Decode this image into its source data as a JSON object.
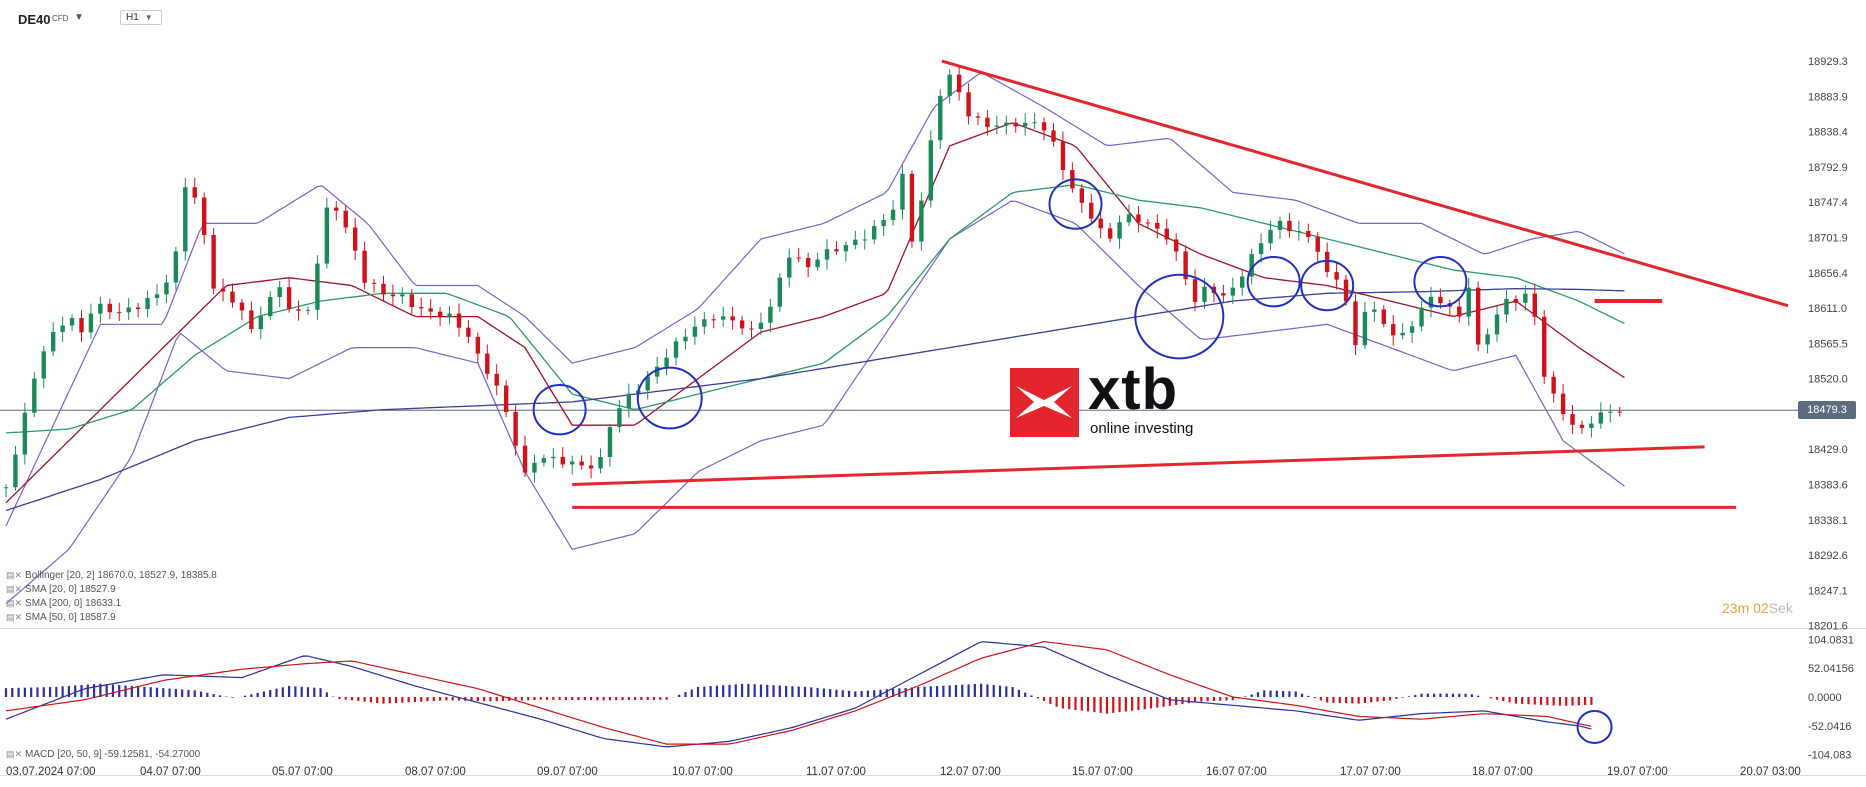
{
  "header": {
    "symbol": "DE40",
    "symbol_type": "CFD",
    "timeframe": "H1"
  },
  "logo": {
    "word": "xtb",
    "tagline": "online investing"
  },
  "countdown": {
    "minutes": "23",
    "m_unit": "m",
    "seconds": "02",
    "s_unit": "Sek"
  },
  "current_price": "18479.3",
  "indicators": [
    {
      "label": "Bollinger  [20, 2] 18670.0,  18527.9,  18385.8"
    },
    {
      "label": "SMA  [20, 0]  18527.9"
    },
    {
      "label": "SMA  [200, 0]  18633.1"
    },
    {
      "label": "SMA  [50, 0]  18587.9"
    }
  ],
  "macd_label": "MACD  [20, 50, 9]  -59.12581,   -54.27000",
  "colors": {
    "bull": "#1a8a5a",
    "bear": "#d0121b",
    "bollinger": "#7a62c8",
    "sma20": "#a0112a",
    "sma50": "#2a9a6a",
    "sma200": "#3a3f99",
    "trend": "#e3262e",
    "circle": "#2230c0",
    "macd_pos": "#2b2fa0",
    "macd_neg": "#d0121b"
  },
  "chart_data": {
    "type": "candlestick",
    "timeframe": "H1",
    "y_ticks": [
      18929.3,
      18883.9,
      18838.4,
      18792.9,
      18747.4,
      18701.9,
      18656.4,
      18611.0,
      18565.5,
      18520.0,
      18429.0,
      18383.6,
      18338.1,
      18292.6,
      18247.1,
      18201.6
    ],
    "ylim": [
      18196,
      18950
    ],
    "x_ticks": [
      "03.07.2024  07:00",
      "04.07  07:00",
      "05.07  07:00",
      "08.07  07:00",
      "09.07  07:00",
      "10.07  07:00",
      "11.07  07:00",
      "12.07  07:00",
      "15.07  07:00",
      "16.07  07:00",
      "17.07  07:00",
      "18.07  07:00",
      "19.07  07:00",
      "20.07  03:00"
    ],
    "path_points": [
      [
        0,
        18380
      ],
      [
        10,
        18455
      ],
      [
        20,
        18540
      ],
      [
        32,
        18585
      ],
      [
        40,
        18600
      ],
      [
        48,
        18580
      ],
      [
        56,
        18615
      ],
      [
        72,
        18605
      ],
      [
        86,
        18615
      ],
      [
        100,
        18635
      ],
      [
        108,
        18680
      ],
      [
        114,
        18770
      ],
      [
        118,
        18760
      ],
      [
        122,
        18745
      ],
      [
        132,
        18640
      ],
      [
        140,
        18625
      ],
      [
        150,
        18610
      ],
      [
        156,
        18580
      ],
      [
        166,
        18620
      ],
      [
        176,
        18640
      ],
      [
        182,
        18600
      ],
      [
        192,
        18610
      ],
      [
        200,
        18690
      ],
      [
        206,
        18760
      ],
      [
        214,
        18720
      ],
      [
        220,
        18700
      ],
      [
        226,
        18650
      ],
      [
        240,
        18630
      ],
      [
        252,
        18625
      ],
      [
        262,
        18610
      ],
      [
        270,
        18605
      ],
      [
        282,
        18600
      ],
      [
        294,
        18575
      ],
      [
        302,
        18540
      ],
      [
        310,
        18520
      ],
      [
        320,
        18465
      ],
      [
        330,
        18395
      ],
      [
        338,
        18420
      ],
      [
        350,
        18415
      ],
      [
        362,
        18410
      ],
      [
        370,
        18405
      ],
      [
        378,
        18415
      ],
      [
        384,
        18460
      ],
      [
        392,
        18490
      ],
      [
        400,
        18505
      ],
      [
        408,
        18520
      ],
      [
        416,
        18540
      ],
      [
        424,
        18560
      ],
      [
        436,
        18585
      ],
      [
        450,
        18600
      ],
      [
        462,
        18595
      ],
      [
        474,
        18580
      ],
      [
        482,
        18600
      ],
      [
        490,
        18625
      ],
      [
        494,
        18670
      ],
      [
        500,
        18685
      ],
      [
        508,
        18660
      ],
      [
        518,
        18680
      ],
      [
        532,
        18690
      ],
      [
        544,
        18700
      ],
      [
        556,
        18720
      ],
      [
        564,
        18740
      ],
      [
        570,
        18780
      ],
      [
        576,
        18700
      ],
      [
        584,
        18765
      ],
      [
        590,
        18855
      ],
      [
        596,
        18905
      ],
      [
        602,
        18910
      ],
      [
        606,
        18890
      ],
      [
        612,
        18860
      ],
      [
        620,
        18850
      ],
      [
        630,
        18845
      ],
      [
        640,
        18850
      ],
      [
        650,
        18845
      ],
      [
        656,
        18855
      ],
      [
        662,
        18835
      ],
      [
        668,
        18815
      ],
      [
        676,
        18770
      ],
      [
        684,
        18745
      ],
      [
        692,
        18725
      ],
      [
        700,
        18695
      ],
      [
        710,
        18730
      ],
      [
        720,
        18725
      ],
      [
        730,
        18715
      ],
      [
        740,
        18700
      ],
      [
        748,
        18660
      ],
      [
        756,
        18620
      ],
      [
        764,
        18640
      ],
      [
        774,
        18625
      ],
      [
        782,
        18640
      ],
      [
        790,
        18670
      ],
      [
        796,
        18690
      ],
      [
        802,
        18710
      ],
      [
        810,
        18720
      ],
      [
        820,
        18710
      ],
      [
        830,
        18700
      ],
      [
        836,
        18680
      ],
      [
        842,
        18640
      ],
      [
        846,
        18650
      ],
      [
        852,
        18620
      ],
      [
        858,
        18560
      ],
      [
        862,
        18600
      ],
      [
        866,
        18620
      ],
      [
        872,
        18600
      ],
      [
        880,
        18580
      ],
      [
        888,
        18575
      ],
      [
        896,
        18595
      ],
      [
        902,
        18620
      ],
      [
        910,
        18625
      ],
      [
        918,
        18610
      ],
      [
        924,
        18600
      ],
      [
        930,
        18640
      ],
      [
        936,
        18560
      ],
      [
        942,
        18580
      ],
      [
        950,
        18610
      ],
      [
        956,
        18625
      ],
      [
        962,
        18620
      ],
      [
        968,
        18630
      ],
      [
        972,
        18600
      ],
      [
        976,
        18540
      ],
      [
        980,
        18510
      ],
      [
        986,
        18490
      ],
      [
        994,
        18465
      ],
      [
        1000,
        18450
      ],
      [
        1010,
        18470
      ],
      [
        1020,
        18478
      ],
      [
        1030,
        18480
      ]
    ],
    "bollinger": {
      "upper": [
        [
          0,
          18330
        ],
        [
          60,
          18590
        ],
        [
          100,
          18590
        ],
        [
          125,
          18720
        ],
        [
          160,
          18720
        ],
        [
          200,
          18770
        ],
        [
          230,
          18720
        ],
        [
          260,
          18640
        ],
        [
          300,
          18640
        ],
        [
          330,
          18600
        ],
        [
          360,
          18540
        ],
        [
          400,
          18560
        ],
        [
          440,
          18610
        ],
        [
          480,
          18700
        ],
        [
          520,
          18720
        ],
        [
          560,
          18760
        ],
        [
          590,
          18870
        ],
        [
          620,
          18915
        ],
        [
          660,
          18870
        ],
        [
          700,
          18820
        ],
        [
          740,
          18830
        ],
        [
          780,
          18760
        ],
        [
          820,
          18750
        ],
        [
          860,
          18720
        ],
        [
          900,
          18720
        ],
        [
          940,
          18680
        ],
        [
          970,
          18700
        ],
        [
          1000,
          18710
        ],
        [
          1030,
          18680
        ]
      ],
      "lower": [
        [
          0,
          18230
        ],
        [
          40,
          18300
        ],
        [
          80,
          18420
        ],
        [
          110,
          18580
        ],
        [
          140,
          18530
        ],
        [
          180,
          18520
        ],
        [
          220,
          18560
        ],
        [
          260,
          18560
        ],
        [
          300,
          18540
        ],
        [
          330,
          18400
        ],
        [
          360,
          18300
        ],
        [
          400,
          18320
        ],
        [
          440,
          18400
        ],
        [
          480,
          18440
        ],
        [
          520,
          18460
        ],
        [
          560,
          18580
        ],
        [
          600,
          18700
        ],
        [
          640,
          18750
        ],
        [
          680,
          18720
        ],
        [
          720,
          18640
        ],
        [
          760,
          18570
        ],
        [
          800,
          18580
        ],
        [
          840,
          18590
        ],
        [
          880,
          18560
        ],
        [
          920,
          18530
        ],
        [
          960,
          18550
        ],
        [
          990,
          18440
        ],
        [
          1030,
          18380
        ]
      ],
      "middle_sma20": [
        [
          0,
          18360
        ],
        [
          60,
          18480
        ],
        [
          100,
          18560
        ],
        [
          140,
          18640
        ],
        [
          180,
          18650
        ],
        [
          220,
          18640
        ],
        [
          260,
          18600
        ],
        [
          300,
          18600
        ],
        [
          330,
          18560
        ],
        [
          360,
          18460
        ],
        [
          400,
          18460
        ],
        [
          440,
          18520
        ],
        [
          480,
          18580
        ],
        [
          520,
          18600
        ],
        [
          560,
          18630
        ],
        [
          600,
          18820
        ],
        [
          640,
          18850
        ],
        [
          680,
          18820
        ],
        [
          720,
          18720
        ],
        [
          760,
          18680
        ],
        [
          800,
          18650
        ],
        [
          840,
          18640
        ],
        [
          880,
          18620
        ],
        [
          920,
          18600
        ],
        [
          960,
          18620
        ],
        [
          1000,
          18560
        ],
        [
          1030,
          18520
        ]
      ]
    },
    "sma50": [
      [
        0,
        18450
      ],
      [
        40,
        18455
      ],
      [
        80,
        18480
      ],
      [
        120,
        18550
      ],
      [
        160,
        18600
      ],
      [
        200,
        18620
      ],
      [
        240,
        18630
      ],
      [
        280,
        18630
      ],
      [
        320,
        18600
      ],
      [
        360,
        18500
      ],
      [
        400,
        18480
      ],
      [
        440,
        18500
      ],
      [
        480,
        18520
      ],
      [
        520,
        18540
      ],
      [
        560,
        18600
      ],
      [
        600,
        18700
      ],
      [
        640,
        18760
      ],
      [
        680,
        18770
      ],
      [
        720,
        18750
      ],
      [
        760,
        18740
      ],
      [
        800,
        18720
      ],
      [
        840,
        18700
      ],
      [
        880,
        18680
      ],
      [
        920,
        18660
      ],
      [
        960,
        18650
      ],
      [
        1000,
        18620
      ],
      [
        1030,
        18590
      ]
    ],
    "sma200": [
      [
        0,
        18350
      ],
      [
        60,
        18390
      ],
      [
        120,
        18440
      ],
      [
        180,
        18470
      ],
      [
        240,
        18480
      ],
      [
        300,
        18485
      ],
      [
        360,
        18490
      ],
      [
        420,
        18505
      ],
      [
        480,
        18520
      ],
      [
        540,
        18540
      ],
      [
        600,
        18560
      ],
      [
        660,
        18580
      ],
      [
        720,
        18600
      ],
      [
        780,
        18620
      ],
      [
        840,
        18630
      ],
      [
        900,
        18632
      ],
      [
        960,
        18636
      ],
      [
        1000,
        18635
      ],
      [
        1030,
        18633
      ]
    ],
    "annotations": {
      "resistance_line": {
        "from": [
          18929.3,
          595
        ],
        "to": [
          18614,
          1133
        ]
      },
      "rising_support": {
        "from": [
          18383.6,
          360
        ],
        "to": [
          18432,
          1080
        ]
      },
      "flat_support": {
        "value": 18354,
        "from": 360,
        "to": 1100
      },
      "short_level": {
        "value": 18620,
        "from": 1010,
        "to": 1053
      },
      "circles": [
        [
          352,
          18480
        ],
        [
          422,
          18495
        ],
        [
          680,
          18745
        ],
        [
          746,
          18600
        ],
        [
          806,
          18645
        ],
        [
          840,
          18640
        ],
        [
          912,
          18645
        ]
      ]
    },
    "macd": {
      "y_ticks": [
        104.0831,
        52.04156,
        0.0,
        -52.0416,
        -104.083
      ],
      "ylim": [
        -110,
        110
      ],
      "macd_line": [
        [
          0,
          -40
        ],
        [
          50,
          15
        ],
        [
          100,
          40
        ],
        [
          150,
          35
        ],
        [
          190,
          75
        ],
        [
          220,
          55
        ],
        [
          260,
          20
        ],
        [
          300,
          -10
        ],
        [
          340,
          -40
        ],
        [
          380,
          -75
        ],
        [
          420,
          -90
        ],
        [
          460,
          -80
        ],
        [
          500,
          -55
        ],
        [
          540,
          -20
        ],
        [
          580,
          40
        ],
        [
          620,
          100
        ],
        [
          660,
          90
        ],
        [
          700,
          40
        ],
        [
          740,
          -5
        ],
        [
          780,
          -15
        ],
        [
          820,
          -25
        ],
        [
          860,
          -42
        ],
        [
          900,
          -30
        ],
        [
          940,
          -25
        ],
        [
          980,
          -45
        ],
        [
          1000,
          -52
        ],
        [
          1010,
          -59
        ]
      ],
      "signal_line": [
        [
          0,
          -25
        ],
        [
          50,
          -5
        ],
        [
          100,
          30
        ],
        [
          150,
          50
        ],
        [
          190,
          60
        ],
        [
          220,
          65
        ],
        [
          260,
          40
        ],
        [
          300,
          15
        ],
        [
          340,
          -20
        ],
        [
          380,
          -55
        ],
        [
          420,
          -85
        ],
        [
          460,
          -85
        ],
        [
          500,
          -60
        ],
        [
          540,
          -25
        ],
        [
          580,
          20
        ],
        [
          620,
          70
        ],
        [
          660,
          100
        ],
        [
          700,
          85
        ],
        [
          740,
          40
        ],
        [
          780,
          0
        ],
        [
          820,
          -15
        ],
        [
          860,
          -35
        ],
        [
          900,
          -40
        ],
        [
          940,
          -30
        ],
        [
          980,
          -35
        ],
        [
          1000,
          -48
        ],
        [
          1010,
          -54
        ]
      ],
      "histogram": [
        [
          0,
          16
        ],
        [
          30,
          18
        ],
        [
          60,
          24
        ],
        [
          90,
          18
        ],
        [
          120,
          12
        ],
        [
          145,
          -2
        ],
        [
          180,
          20
        ],
        [
          200,
          16
        ],
        [
          210,
          -3
        ],
        [
          240,
          -12
        ],
        [
          280,
          -6
        ],
        [
          310,
          -8
        ],
        [
          340,
          -5
        ],
        [
          380,
          -6
        ],
        [
          420,
          -5
        ],
        [
          440,
          18
        ],
        [
          470,
          24
        ],
        [
          510,
          18
        ],
        [
          540,
          10
        ],
        [
          580,
          18
        ],
        [
          620,
          24
        ],
        [
          640,
          18
        ],
        [
          670,
          -20
        ],
        [
          700,
          -30
        ],
        [
          730,
          -20
        ],
        [
          760,
          -8
        ],
        [
          780,
          -6
        ],
        [
          800,
          12
        ],
        [
          820,
          10
        ],
        [
          840,
          -10
        ],
        [
          860,
          -12
        ],
        [
          880,
          -6
        ],
        [
          900,
          6
        ],
        [
          930,
          6
        ],
        [
          960,
          -12
        ],
        [
          990,
          -16
        ],
        [
          1010,
          -14
        ]
      ],
      "circle": [
        1010,
        -54
      ]
    }
  }
}
